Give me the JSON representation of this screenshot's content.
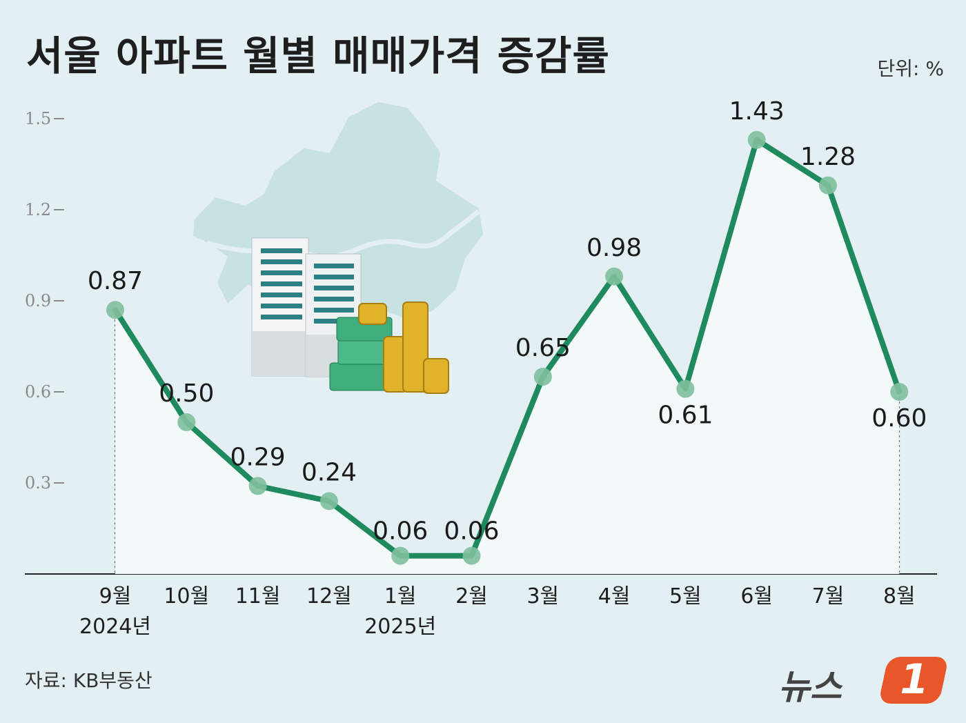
{
  "title": "서울 아파트 월별 매매가격 증감률",
  "unit_label": "단위: %",
  "source": "자료: KB부동산",
  "logo": {
    "text": "뉴스",
    "badge": "1"
  },
  "colors": {
    "background": "#e4eff3",
    "line": "#1e8a5e",
    "marker": "#7fbf9f",
    "map": "#c8e2e2",
    "axis": "#222222"
  },
  "illustration": {
    "map": "seoul-map-icon",
    "buildings": "apartment-buildings-icon",
    "money": "cash-and-coins-icon"
  },
  "chart_data": {
    "type": "line",
    "title": "서울 아파트 월별 매매가격 증감률",
    "unit": "%",
    "categories": [
      "9월",
      "10월",
      "11월",
      "12월",
      "1월",
      "2월",
      "3월",
      "4월",
      "5월",
      "6월",
      "7월",
      "8월"
    ],
    "year_labels": [
      "2024년",
      "",
      "",
      "",
      "2025년",
      "",
      "",
      "",
      "",
      "",
      "",
      ""
    ],
    "values": [
      0.87,
      0.5,
      0.29,
      0.24,
      0.06,
      0.06,
      0.65,
      0.98,
      0.61,
      1.43,
      1.28,
      0.6
    ],
    "value_labels": [
      "0.87",
      "0.50",
      "0.29",
      "0.24",
      "0.06",
      "0.06",
      "0.65",
      "0.98",
      "0.61",
      "1.43",
      "1.28",
      "0.60"
    ],
    "yticks": [
      0.3,
      0.6,
      0.9,
      1.2,
      1.5
    ],
    "ytick_labels": [
      "0.3",
      "0.6",
      "0.9",
      "1.2",
      "1.5"
    ],
    "ylim": [
      0,
      1.5
    ],
    "grid": false,
    "legend": "none"
  }
}
